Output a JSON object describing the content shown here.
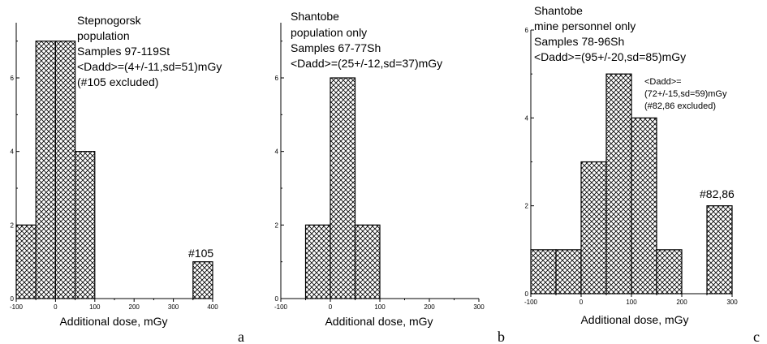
{
  "chart_data": [
    {
      "type": "bar",
      "panel_letter": "a",
      "xlabel": "Additional dose, mGy",
      "ylabel": "",
      "xlim": [
        -100,
        400
      ],
      "ylim": [
        0,
        7.5
      ],
      "xticks": [
        -100,
        0,
        100,
        200,
        300,
        400
      ],
      "yticks": [
        0,
        2,
        4,
        6
      ],
      "bin_width": 50,
      "bins": [
        {
          "x0": -100,
          "x1": -50,
          "count": 2
        },
        {
          "x0": -50,
          "x1": 0,
          "count": 7
        },
        {
          "x0": 0,
          "x1": 50,
          "count": 7
        },
        {
          "x0": 50,
          "x1": 100,
          "count": 4
        },
        {
          "x0": 350,
          "x1": 400,
          "count": 1
        }
      ],
      "annotations": [
        {
          "text": "Stepnogorsk",
          "size": "big"
        },
        {
          "text": "population",
          "size": "big"
        },
        {
          "text": "Samples 97-119St",
          "size": "big"
        },
        {
          "text": "<Dadd>=(4+/-11,sd=51)mGy",
          "size": "big"
        },
        {
          "text": "(#105 excluded)",
          "size": "big"
        },
        {
          "text": "#105",
          "size": "big"
        }
      ]
    },
    {
      "type": "bar",
      "panel_letter": "b",
      "xlabel": "Additional dose, mGy",
      "ylabel": "",
      "xlim": [
        -100,
        300
      ],
      "ylim": [
        0,
        7.5
      ],
      "xticks": [
        -100,
        0,
        100,
        200,
        300
      ],
      "yticks": [
        0,
        2,
        4,
        6
      ],
      "bin_width": 50,
      "bins": [
        {
          "x0": -50,
          "x1": 0,
          "count": 2
        },
        {
          "x0": 0,
          "x1": 50,
          "count": 6
        },
        {
          "x0": 50,
          "x1": 100,
          "count": 2
        }
      ],
      "annotations": [
        {
          "text": "Shantobe",
          "size": "big"
        },
        {
          "text": "population only",
          "size": "big"
        },
        {
          "text": "Samples 67-77Sh",
          "size": "big"
        },
        {
          "text": "<Dadd>=(25+/-12,sd=37)mGy",
          "size": "big"
        }
      ]
    },
    {
      "type": "bar",
      "panel_letter": "c",
      "xlabel": "Additional dose, mGy",
      "ylabel": "",
      "xlim": [
        -100,
        300
      ],
      "ylim": [
        0,
        6
      ],
      "xticks": [
        -100,
        0,
        100,
        200,
        300
      ],
      "yticks": [
        0,
        2,
        4,
        6
      ],
      "bin_width": 50,
      "bins": [
        {
          "x0": -100,
          "x1": -50,
          "count": 1
        },
        {
          "x0": -50,
          "x1": 0,
          "count": 1
        },
        {
          "x0": 0,
          "x1": 50,
          "count": 3
        },
        {
          "x0": 50,
          "x1": 100,
          "count": 5
        },
        {
          "x0": 100,
          "x1": 150,
          "count": 4
        },
        {
          "x0": 150,
          "x1": 200,
          "count": 1
        },
        {
          "x0": 250,
          "x1": 300,
          "count": 2
        }
      ],
      "annotations": [
        {
          "text": "Shantobe",
          "size": "big"
        },
        {
          "text": "mine personnel only",
          "size": "big"
        },
        {
          "text": "Samples 78-96Sh",
          "size": "big"
        },
        {
          "text": "<Dadd>=(95+/-20,sd=85)mGy",
          "size": "big"
        },
        {
          "text": "<Dadd>=",
          "size": "small"
        },
        {
          "text": "(72+/-15,sd=59)mGy",
          "size": "small"
        },
        {
          "text": "(#82,86 excluded)",
          "size": "small"
        },
        {
          "text": "#82,86",
          "size": "big"
        }
      ]
    }
  ]
}
